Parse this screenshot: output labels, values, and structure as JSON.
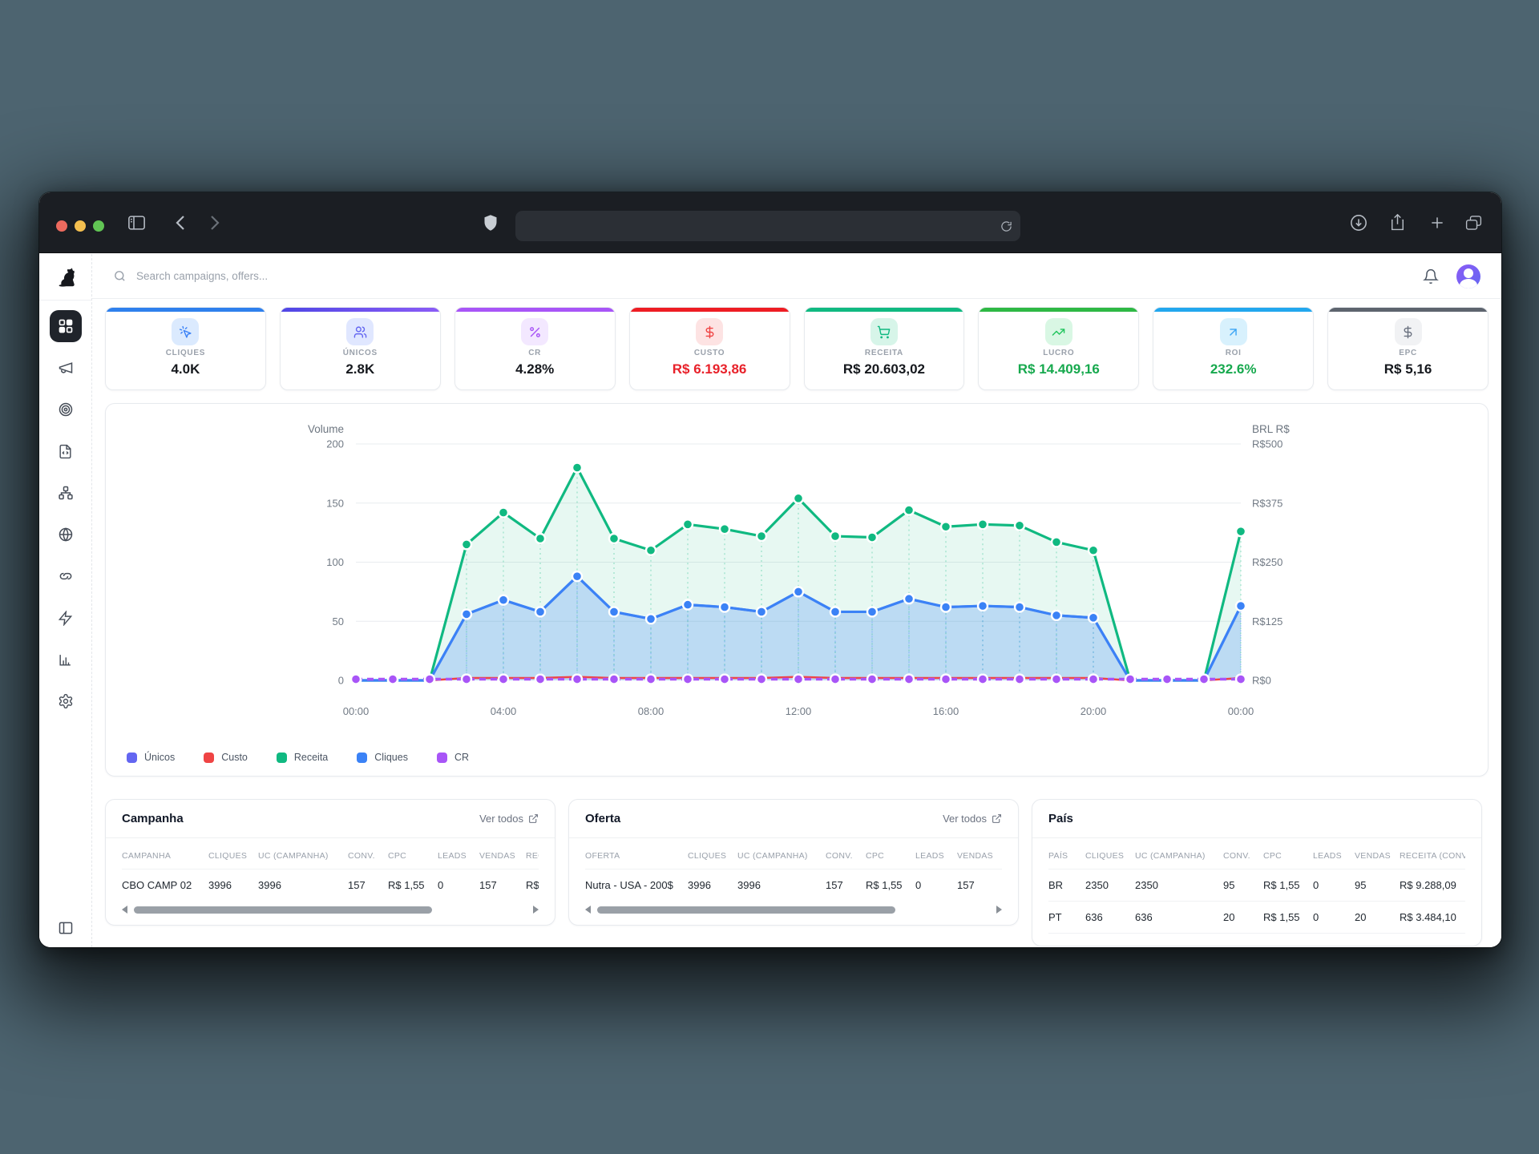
{
  "browser": {
    "window_controls": [
      "close-light",
      "minimize-light",
      "zoom-light"
    ],
    "toolbar_icons": [
      "sidebar-toggle-icon",
      "back-icon",
      "forward-icon",
      "shield-icon",
      "reload-icon",
      "download-icon",
      "share-icon",
      "new-tab-icon",
      "tab-overview-icon"
    ],
    "url_value": ""
  },
  "topbar": {
    "search_placeholder": "Search campaigns, offers...",
    "icons": [
      "search-icon",
      "bell-icon",
      "avatar"
    ]
  },
  "sidebar": {
    "logo": "dog-logo",
    "items": [
      "dashboard",
      "campaigns-megaphone",
      "offers-target",
      "landers-code-file",
      "flows-hierarchy",
      "domains-globe",
      "links-chain",
      "automations-zap",
      "reports-bar-chart",
      "settings-gear"
    ],
    "active": "dashboard",
    "bottom": "collapse-sidebar"
  },
  "kpis": [
    {
      "label": "CLIQUES",
      "value": "4.0K",
      "accent": "#2f80ed",
      "icon": "click",
      "icon_color": "#3b82f6",
      "icon_bg": "#dbeafe",
      "value_color": "#15181d"
    },
    {
      "label": "ÚNICOS",
      "value": "2.8K",
      "accent": "linear-gradient(90deg,#4f46e5,#8b5cf6)",
      "icon": "users",
      "icon_color": "#6366f1",
      "icon_bg": "#e0e7ff",
      "value_color": "#15181d"
    },
    {
      "label": "CR",
      "value": "4.28%",
      "accent": "#a855f7",
      "icon": "percent",
      "icon_color": "#a855f7",
      "icon_bg": "#f3e8ff",
      "value_color": "#15181d"
    },
    {
      "label": "CUSTO",
      "value": "R$ 6.193,86",
      "accent": "#ee1d23",
      "icon": "dollar",
      "icon_color": "#ef4444",
      "icon_bg": "#fde3e3",
      "value_color": "#e8212a"
    },
    {
      "label": "RECEITA",
      "value": "R$ 20.603,02",
      "accent": "#10b981",
      "icon": "cart",
      "icon_color": "#10b981",
      "icon_bg": "#d7f5e9",
      "value_color": "#15181d"
    },
    {
      "label": "LUCRO",
      "value": "R$ 14.409,16",
      "accent": "#2eb844",
      "icon": "trend",
      "icon_color": "#22c55e",
      "icon_bg": "#d9f7e4",
      "value_color": "#17a94e"
    },
    {
      "label": "ROI",
      "value": "232.6%",
      "accent": "#22a7ee",
      "icon": "arrowur",
      "icon_color": "#3ba5f5",
      "icon_bg": "#d8f1fd",
      "value_color": "#17a94e"
    },
    {
      "label": "EPC",
      "value": "R$ 5,16",
      "accent": "#5d646e",
      "icon": "dollar",
      "icon_color": "#6b7280",
      "icon_bg": "#f1f2f4",
      "value_color": "#15181d"
    }
  ],
  "chart_data": {
    "type": "line",
    "points": 25,
    "x_tick_indices": [
      0,
      4,
      8,
      12,
      16,
      20,
      24
    ],
    "x_tick_labels": [
      "00:00",
      "04:00",
      "08:00",
      "12:00",
      "16:00",
      "20:00",
      "00:00"
    ],
    "left_axis": {
      "title": "Volume",
      "ticks": [
        200,
        150,
        100,
        50,
        0
      ],
      "max": 200
    },
    "right_axis": {
      "title": "BRL R$",
      "ticks": [
        "R$500",
        "R$375",
        "R$250",
        "R$125",
        "R$0"
      ]
    },
    "series": [
      {
        "name": "Únicos",
        "color": "#6366f1",
        "values": [
          0,
          0,
          0,
          56,
          68,
          58,
          88,
          58,
          52,
          64,
          62,
          58,
          75,
          58,
          58,
          69,
          62,
          63,
          62,
          55,
          53,
          0,
          0,
          0,
          63
        ]
      },
      {
        "name": "Custo",
        "color": "#ef4444",
        "values": [
          0,
          0,
          0,
          2,
          2,
          2,
          3,
          2,
          2,
          2,
          2,
          2,
          3,
          2,
          2,
          2,
          2,
          2,
          2,
          2,
          2,
          0,
          0,
          0,
          2
        ]
      },
      {
        "name": "Receita",
        "color": "#10b981",
        "fill": "rgba(16,185,129,0.10)",
        "values": [
          0,
          0,
          0,
          115,
          142,
          120,
          180,
          120,
          110,
          132,
          128,
          122,
          154,
          122,
          121,
          144,
          130,
          132,
          131,
          117,
          110,
          0,
          0,
          0,
          126
        ]
      },
      {
        "name": "Cliques",
        "color": "#3b82f6",
        "fill": "rgba(59,130,246,0.25)",
        "values": [
          0,
          0,
          0,
          56,
          68,
          58,
          88,
          58,
          52,
          64,
          62,
          58,
          75,
          58,
          58,
          69,
          62,
          63,
          62,
          55,
          53,
          0,
          0,
          0,
          63
        ]
      },
      {
        "name": "CR",
        "color": "#a855f7",
        "dashed": true,
        "values": [
          1,
          1,
          1,
          1,
          1,
          1,
          1,
          1,
          1,
          1,
          1,
          1,
          1,
          1,
          1,
          1,
          1,
          1,
          1,
          1,
          1,
          1,
          1,
          1,
          1
        ]
      }
    ],
    "legend": [
      "Únicos",
      "Custo",
      "Receita",
      "Cliques",
      "CR"
    ],
    "grid": true,
    "legend_position": "bottom-left"
  },
  "tables": [
    {
      "title": "Campanha",
      "link": "Ver todos",
      "columns": [
        "CAMPANHA",
        "CLIQUES",
        "UC (CAMPANHA)",
        "CONV.",
        "CPC",
        "LEADS",
        "VENDAS",
        "RECEITA"
      ],
      "rows": [
        [
          "CBO CAMP 02",
          "3996",
          "3996",
          "157",
          "R$ 1,55",
          "0",
          "157",
          "R$"
        ]
      ],
      "scrollbar": true
    },
    {
      "title": "Oferta",
      "link": "Ver todos",
      "columns": [
        "OFERTA",
        "CLIQUES",
        "UC (CAMPANHA)",
        "CONV.",
        "CPC",
        "LEADS",
        "VENDAS"
      ],
      "rows": [
        [
          "Nutra - USA - 200$",
          "3996",
          "3996",
          "157",
          "R$ 1,55",
          "0",
          "157"
        ]
      ],
      "scrollbar": true
    },
    {
      "title": "País",
      "link": null,
      "columns": [
        "PAÍS",
        "CLIQUES",
        "UC (CAMPANHA)",
        "CONV.",
        "CPC",
        "LEADS",
        "VENDAS",
        "RECEITA (CONV.)"
      ],
      "rows": [
        [
          "BR",
          "2350",
          "2350",
          "95",
          "R$ 1,55",
          "0",
          "95",
          "R$ 9.288,09"
        ],
        [
          "PT",
          "636",
          "636",
          "20",
          "R$ 1,55",
          "0",
          "20",
          "R$ 3.484,10"
        ]
      ],
      "scrollbar": false
    }
  ]
}
